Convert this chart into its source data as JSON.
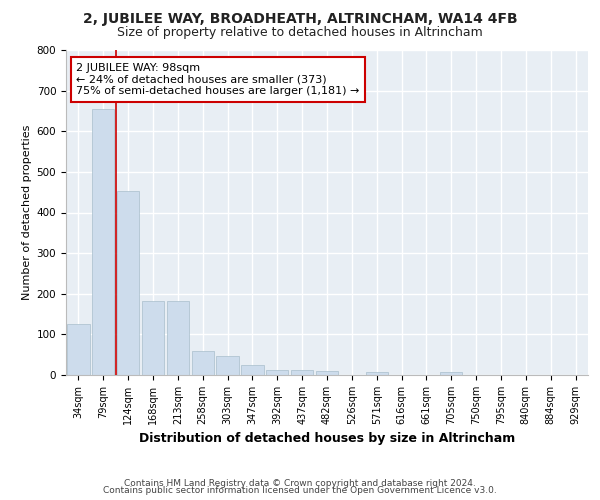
{
  "title": "2, JUBILEE WAY, BROADHEATH, ALTRINCHAM, WA14 4FB",
  "subtitle": "Size of property relative to detached houses in Altrincham",
  "xlabel": "Distribution of detached houses by size in Altrincham",
  "ylabel": "Number of detached properties",
  "footnote1": "Contains HM Land Registry data © Crown copyright and database right 2024.",
  "footnote2": "Contains public sector information licensed under the Open Government Licence v3.0.",
  "bar_labels": [
    "34sqm",
    "79sqm",
    "124sqm",
    "168sqm",
    "213sqm",
    "258sqm",
    "303sqm",
    "347sqm",
    "392sqm",
    "437sqm",
    "482sqm",
    "526sqm",
    "571sqm",
    "616sqm",
    "661sqm",
    "705sqm",
    "750sqm",
    "795sqm",
    "840sqm",
    "884sqm",
    "929sqm"
  ],
  "bar_values": [
    125,
    655,
    452,
    183,
    183,
    60,
    47,
    24,
    12,
    12,
    10,
    0,
    7,
    0,
    0,
    8,
    0,
    0,
    0,
    0,
    0
  ],
  "bar_color": "#cddcec",
  "bar_edge_color": "#a8becc",
  "annotation_line1": "2 JUBILEE WAY: 98sqm",
  "annotation_line2": "← 24% of detached houses are smaller (373)",
  "annotation_line3": "75% of semi-detached houses are larger (1,181) →",
  "red_line_x": 1.5,
  "annotation_box_color": "#ffffff",
  "annotation_border_color": "#cc0000",
  "ylim": [
    0,
    800
  ],
  "yticks": [
    0,
    100,
    200,
    300,
    400,
    500,
    600,
    700,
    800
  ],
  "bg_color": "#e8eef4",
  "fig_bg_color": "#ffffff",
  "grid_color": "#ffffff",
  "title_fontsize": 10,
  "subtitle_fontsize": 9,
  "xlabel_fontsize": 9,
  "ylabel_fontsize": 8,
  "tick_fontsize": 7,
  "annotation_fontsize": 8,
  "footnote_fontsize": 6.5
}
